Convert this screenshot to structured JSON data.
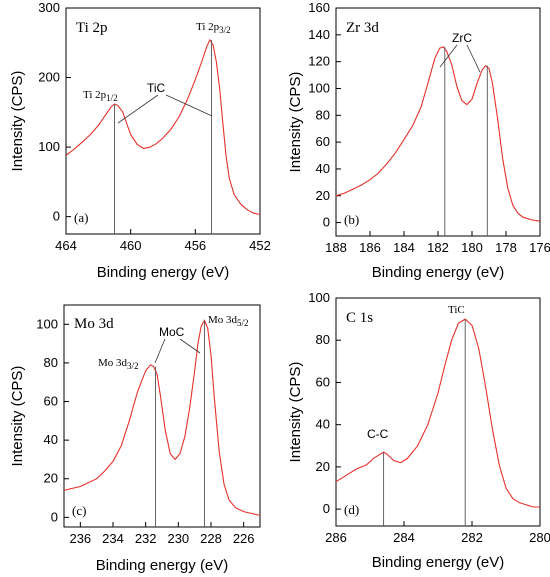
{
  "chart_data": [
    {
      "type": "line",
      "panel_title": "Ti 2p",
      "tag": "(a)",
      "xlabel": "Binding energy (eV)",
      "ylabel": "Intensity (CPS)",
      "xlim": [
        464,
        452
      ],
      "ylim": [
        -25,
        300
      ],
      "xticks": [
        464,
        460,
        456,
        452
      ],
      "yticks": [
        0,
        100,
        200,
        300
      ],
      "peak_labels": [
        {
          "main": "Ti 2p",
          "sub": "1/2",
          "x": 461.0
        },
        {
          "main": "Ti 2p",
          "sub": "3/2",
          "x": 455.0
        }
      ],
      "component_label": "TiC",
      "peak_lines": [
        461.0,
        455.0
      ],
      "series": [
        {
          "x": [
            464,
            463.5,
            463,
            462.5,
            462,
            461.5,
            461.2,
            461,
            460.8,
            460.5,
            460.2,
            460,
            459.6,
            459.2,
            458.8,
            458.4,
            458,
            457.5,
            457,
            456.5,
            456,
            455.6,
            455.3,
            455.1,
            454.9,
            454.7,
            454.5,
            454.3,
            454.1,
            453.9,
            453.6,
            453.2,
            452.8,
            452.4,
            452
          ],
          "y": [
            88,
            97,
            107,
            118,
            131,
            148,
            158,
            162,
            160,
            151,
            131,
            118,
            104,
            98,
            100,
            105,
            113,
            126,
            144,
            168,
            197,
            223,
            244,
            254,
            247,
            222,
            185,
            135,
            88,
            55,
            32,
            18,
            10,
            5,
            3
          ]
        }
      ]
    },
    {
      "type": "line",
      "panel_title": "Zr 3d",
      "tag": "(b)",
      "xlabel": "Binding energy (eV)",
      "ylabel": "Intensity (CPS)",
      "xlim": [
        188,
        176
      ],
      "ylim": [
        -10,
        160
      ],
      "xticks": [
        188,
        186,
        184,
        182,
        180,
        178,
        176
      ],
      "yticks": [
        0,
        20,
        40,
        60,
        80,
        100,
        120,
        140,
        160
      ],
      "component_label": "ZrC",
      "peak_lines": [
        181.6,
        179.1
      ],
      "series": [
        {
          "x": [
            188,
            187.5,
            187,
            186.5,
            186,
            185.5,
            185,
            184.5,
            184,
            183.5,
            183,
            182.5,
            182.2,
            181.9,
            181.7,
            181.5,
            181.2,
            180.9,
            180.6,
            180.3,
            180,
            179.7,
            179.4,
            179.2,
            179,
            178.8,
            178.5,
            178.2,
            177.9,
            177.6,
            177.3,
            177,
            176.5,
            176
          ],
          "y": [
            20,
            22,
            25,
            28,
            32,
            37,
            44,
            52,
            62,
            72,
            86,
            108,
            122,
            130,
            131,
            128,
            118,
            102,
            91,
            88,
            92,
            104,
            114,
            117,
            115,
            104,
            78,
            48,
            26,
            13,
            7,
            4,
            2,
            1
          ]
        }
      ]
    },
    {
      "type": "line",
      "panel_title": "Mo 3d",
      "tag": "(c)",
      "xlabel": "Binding energy (eV)",
      "ylabel": "Intensity (CPS)",
      "xlim": [
        237,
        225
      ],
      "ylim": [
        -5,
        110
      ],
      "xticks": [
        236,
        234,
        232,
        230,
        228,
        226
      ],
      "yticks": [
        0,
        20,
        40,
        60,
        80,
        100
      ],
      "peak_labels": [
        {
          "main": "Mo 3d",
          "sub": "3/2",
          "x": 231.4
        },
        {
          "main": "Mo 3d",
          "sub": "5/2",
          "x": 228.4
        }
      ],
      "component_label": "MoC",
      "peak_lines": [
        231.4,
        228.4
      ],
      "series": [
        {
          "x": [
            237,
            236.5,
            236,
            235.5,
            235,
            234.5,
            234,
            233.5,
            233,
            232.5,
            232,
            231.7,
            231.5,
            231.3,
            231.1,
            230.8,
            230.5,
            230.2,
            229.9,
            229.6,
            229.3,
            229,
            228.8,
            228.6,
            228.4,
            228.2,
            228,
            227.8,
            227.5,
            227.2,
            226.9,
            226.5,
            226,
            225.5,
            225
          ],
          "y": [
            14,
            15,
            16,
            18,
            20,
            24,
            29,
            37,
            50,
            65,
            76,
            79,
            78,
            74,
            63,
            45,
            33,
            30,
            33,
            42,
            57,
            76,
            90,
            99,
            102,
            98,
            84,
            62,
            34,
            17,
            9,
            5,
            3,
            2,
            1
          ]
        }
      ]
    },
    {
      "type": "line",
      "panel_title": "C 1s",
      "tag": "(d)",
      "xlabel": "Binding energy (eV)",
      "ylabel": "Intensity (CPS)",
      "xlim": [
        286,
        280
      ],
      "ylim": [
        -8,
        100
      ],
      "xticks": [
        286,
        284,
        282,
        280
      ],
      "yticks": [
        0,
        20,
        40,
        60,
        80,
        100
      ],
      "peak_labels": [
        {
          "main": "C-C",
          "sub": "",
          "x": 284.6
        },
        {
          "main": "TiC",
          "sub": "",
          "x": 282.2
        }
      ],
      "peak_lines": [
        284.6,
        282.2
      ],
      "series": [
        {
          "x": [
            286,
            285.7,
            285.4,
            285.1,
            284.9,
            284.7,
            284.6,
            284.5,
            284.3,
            284.1,
            283.9,
            283.6,
            283.3,
            283,
            282.8,
            282.6,
            282.4,
            282.2,
            282,
            281.8,
            281.6,
            281.4,
            281.2,
            281,
            280.8,
            280.6,
            280.4,
            280.2,
            280
          ],
          "y": [
            13,
            16,
            19,
            21,
            24,
            26,
            27,
            26,
            23,
            22,
            24,
            30,
            40,
            55,
            68,
            80,
            88,
            90,
            87,
            76,
            58,
            38,
            21,
            10,
            5,
            3,
            2,
            1,
            1
          ]
        }
      ]
    }
  ]
}
